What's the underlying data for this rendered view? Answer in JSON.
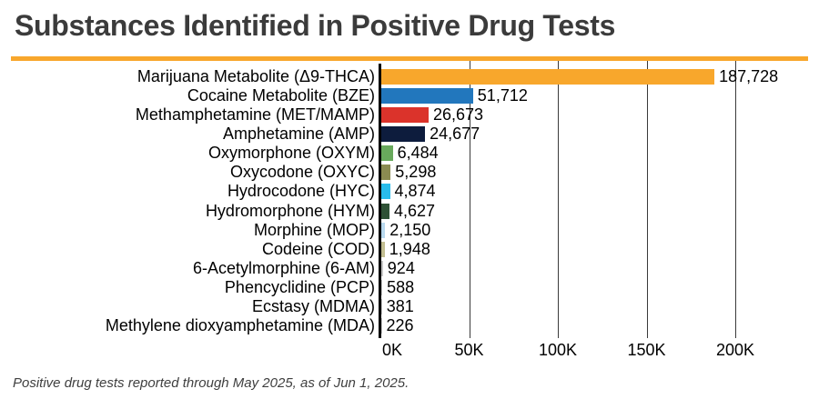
{
  "header": {
    "title": "Substances Identified in Positive Drug Tests"
  },
  "footer": {
    "note": "Positive drug tests reported through May 2025, as of Jun 1, 2025."
  },
  "colors": {
    "accent": "#F8A72C",
    "title_text": "#3B3B3B",
    "gridline": "#3A3A3A",
    "axis": "#000000",
    "label_text": "#000000",
    "footer_text": "#3F3F3F"
  },
  "chart_data": {
    "type": "bar",
    "orientation": "horizontal",
    "title": "Substances Identified in Positive Drug Tests",
    "xlabel": "",
    "ylabel": "",
    "xlim": [
      0,
      200000
    ],
    "grid": true,
    "legend": false,
    "x_tick_labels": [
      "0K",
      "50K",
      "100K",
      "150K",
      "200K"
    ],
    "x_tick_values": [
      0,
      50000,
      100000,
      150000,
      200000
    ],
    "categories": [
      "Marijuana Metabolite (Δ9-THCA)",
      "Cocaine Metabolite (BZE)",
      "Methamphetamine (MET/MAMP)",
      "Amphetamine (AMP)",
      "Oxymorphone (OXYM)",
      "Oxycodone (OXYC)",
      "Hydrocodone (HYC)",
      "Hydromorphone (HYM)",
      "Morphine (MOP)",
      "Codeine (COD)",
      "6-Acetylmorphine (6-AM)",
      "Phencyclidine (PCP)",
      "Ecstasy (MDMA)",
      "Methylene dioxyamphetamine (MDA)"
    ],
    "values": [
      187728,
      51712,
      26673,
      24677,
      6484,
      5298,
      4874,
      4627,
      2150,
      1948,
      924,
      588,
      381,
      226
    ],
    "value_labels": [
      "187,728",
      "51,712",
      "26,673",
      "24,677",
      "6,484",
      "5,298",
      "4,874",
      "4,627",
      "2,150",
      "1,948",
      "924",
      "588",
      "381",
      "226"
    ],
    "bar_colors": [
      "#F8A72C",
      "#2277BD",
      "#DB332B",
      "#0D1C3D",
      "#68A95C",
      "#8A8B51",
      "#29BCEB",
      "#2E5135",
      "#B9D9EE",
      "#C2BE92",
      "#C9C9C9",
      "#C9C9C9",
      "#C9C9C9",
      "#C9C9C9"
    ]
  }
}
